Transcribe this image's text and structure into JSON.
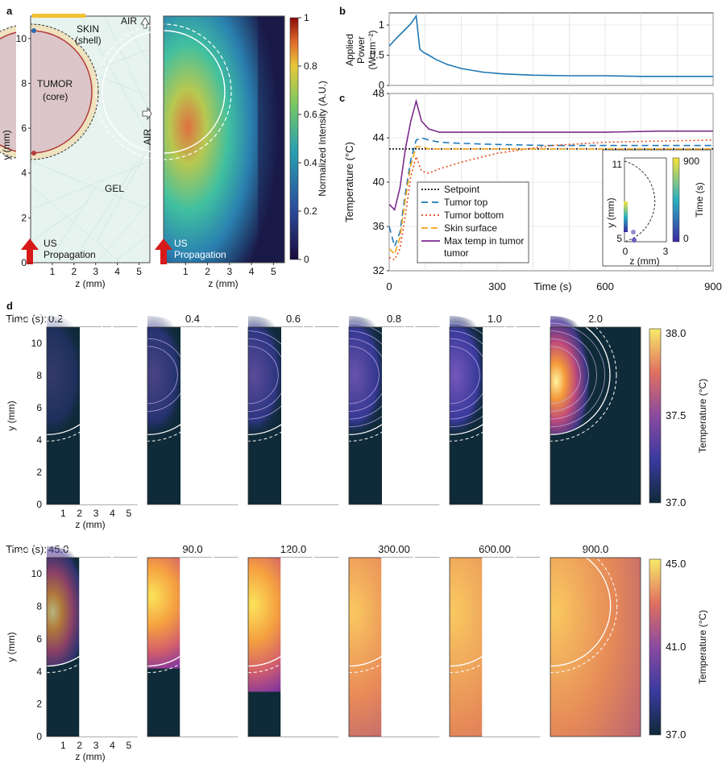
{
  "panel_labels": {
    "a": "a",
    "b": "b",
    "c": "c",
    "d": "d"
  },
  "panel_a": {
    "geometry": {
      "labels": [
        "SKIN",
        "(shell)",
        "TUMOR",
        "(core)",
        "GEL",
        "AIR",
        "AIR",
        "US",
        "Propagation"
      ],
      "ylabel": "y (mm)",
      "xlabel": "z (mm)",
      "yticks": [
        "0",
        "2",
        "4",
        "6",
        "8",
        "10"
      ],
      "xticks": [
        "1",
        "2",
        "3",
        "4",
        "5"
      ],
      "colors": {
        "gel": "#e6f3ef",
        "tumor": "#dcc6c9",
        "skin": "#efe2bf",
        "tumor_edge": "#b23a3a",
        "arrow": "#d61a1a"
      }
    },
    "intensity": {
      "labels": [
        "US",
        "Propagation"
      ],
      "xlabel": "z (mm)",
      "xticks": [
        "1",
        "2",
        "3",
        "4",
        "5"
      ],
      "colorbar_label": "Normalized Intensity (A.U.)",
      "colorbar_ticks": [
        "0",
        "0.2",
        "0.4",
        "0.6",
        "0.8",
        "1"
      ]
    }
  },
  "chart_data": [
    {
      "id": "b",
      "type": "line",
      "ylabel": "Applied Power (W cm⁻²)",
      "ylabel_lines": [
        "Applied",
        "Power",
        "(W cm⁻²)"
      ],
      "yticks": [
        "0",
        "0.5",
        "1"
      ],
      "ylim": [
        0,
        1.2
      ],
      "xlim": [
        0,
        900
      ],
      "series": [
        {
          "name": "",
          "color": "#1f77b4",
          "x": [
            0,
            20,
            40,
            60,
            75,
            85,
            95,
            110,
            130,
            160,
            200,
            260,
            320,
            400,
            500,
            600,
            700,
            800,
            900
          ],
          "y": [
            0.65,
            0.78,
            0.9,
            1.02,
            1.15,
            0.6,
            0.55,
            0.5,
            0.43,
            0.35,
            0.28,
            0.22,
            0.19,
            0.17,
            0.16,
            0.16,
            0.15,
            0.15,
            0.15
          ]
        }
      ]
    },
    {
      "id": "c",
      "type": "line",
      "ylabel": "Temperature (°C)",
      "xlabel": "Time (s)",
      "xticks": [
        "0",
        "300",
        "600",
        "900"
      ],
      "yticks": [
        "32",
        "36",
        "40",
        "44",
        "48"
      ],
      "xlim": [
        0,
        900
      ],
      "ylim": [
        32,
        48
      ],
      "series": [
        {
          "name": "Setpoint",
          "color": "#111111",
          "dash": "2,2",
          "x": [
            0,
            900
          ],
          "y": [
            43,
            43
          ]
        },
        {
          "name": "Tumor top",
          "color": "#1f77b4",
          "dash": "8,5",
          "x": [
            0,
            15,
            30,
            45,
            60,
            75,
            90,
            110,
            140,
            200,
            300,
            450,
            600,
            750,
            900
          ],
          "y": [
            36,
            34.2,
            35.5,
            39,
            42,
            43.8,
            44,
            43.8,
            43.6,
            43.5,
            43.4,
            43.3,
            43.3,
            43.3,
            43.3
          ]
        },
        {
          "name": "Tumor bottom",
          "color": "#e84b1a",
          "dash": "2,3",
          "x": [
            0,
            15,
            30,
            45,
            60,
            75,
            90,
            110,
            140,
            200,
            300,
            450,
            600,
            750,
            900
          ],
          "y": [
            33.2,
            33,
            34,
            37,
            40.5,
            42.3,
            41,
            40.8,
            41.2,
            41.8,
            42.6,
            43.3,
            43.6,
            43.7,
            43.8
          ]
        },
        {
          "name": "Skin surface",
          "color": "#f2a21c",
          "dash": "8,4",
          "x": [
            0,
            15,
            30,
            45,
            60,
            75,
            90,
            110,
            140,
            200,
            300,
            450,
            600,
            750,
            900
          ],
          "y": [
            34,
            33.5,
            35,
            38.5,
            41.5,
            43.2,
            43.2,
            43,
            43,
            43,
            43,
            43,
            43,
            43,
            43
          ]
        },
        {
          "name": "Max temp in tumor",
          "color": "#7b2a8c",
          "dash": "",
          "x": [
            0,
            15,
            30,
            45,
            60,
            75,
            90,
            110,
            140,
            200,
            300,
            450,
            600,
            750,
            900
          ],
          "y": [
            38,
            37.5,
            39.5,
            43,
            45.5,
            47.3,
            45.5,
            44.8,
            44.5,
            44.5,
            44.5,
            44.5,
            44.5,
            44.6,
            44.6
          ]
        }
      ],
      "inset": {
        "ylabel": "y (mm)",
        "xlabel": "z (mm)",
        "yticks": [
          "5",
          "11"
        ],
        "xticks": [
          "0",
          "3"
        ],
        "colorbar_label": "Time (s)",
        "colorbar_ticks": [
          "0",
          "900"
        ]
      }
    }
  ],
  "panel_d": {
    "time_prefix": "Time (s):",
    "ylabel": "y (mm)",
    "xlabel": "z (mm)",
    "yticks": [
      "0",
      "2",
      "4",
      "6",
      "8",
      "10"
    ],
    "xticks": [
      "1",
      "2",
      "3",
      "4",
      "5"
    ],
    "row1": {
      "times": [
        "0.2",
        "0.4",
        "0.6",
        "0.8",
        "1.0",
        "2.0"
      ],
      "colorbar_label": "Temperature (°C)",
      "colorbar_ticks": [
        "38.0",
        "37.5",
        "37.0"
      ]
    },
    "row2": {
      "times": [
        "45.0",
        "90.0",
        "120.0",
        "300.00",
        "600.00",
        "900.0"
      ],
      "colorbar_label": "Temperature (°C)",
      "colorbar_ticks": [
        "45.0",
        "41.0",
        "37.0"
      ]
    }
  }
}
